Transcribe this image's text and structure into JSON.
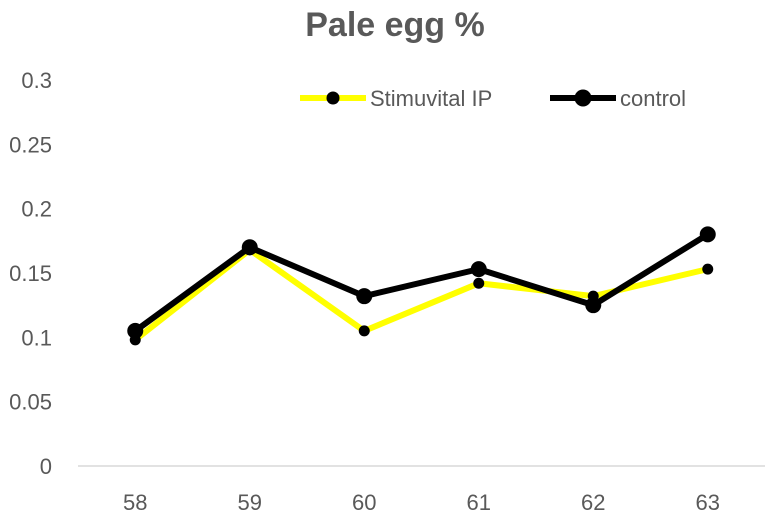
{
  "chart_data": {
    "type": "line",
    "title": "Pale egg %",
    "xlabel": "",
    "ylabel": "",
    "categories": [
      "58",
      "59",
      "60",
      "61",
      "62",
      "63"
    ],
    "ylim": [
      0,
      0.3
    ],
    "yticks": [
      "0",
      "0.05",
      "0.1",
      "0.15",
      "0.2",
      "0.25",
      "0.3"
    ],
    "grid": false,
    "legend_position": "top-right",
    "series": [
      {
        "name": "Stimuvital IP",
        "color": "#FFFF00",
        "values": [
          0.098,
          0.168,
          0.105,
          0.142,
          0.132,
          0.153
        ]
      },
      {
        "name": "control",
        "color": "#000000",
        "values": [
          0.105,
          0.17,
          0.132,
          0.153,
          0.125,
          0.18
        ]
      }
    ]
  }
}
